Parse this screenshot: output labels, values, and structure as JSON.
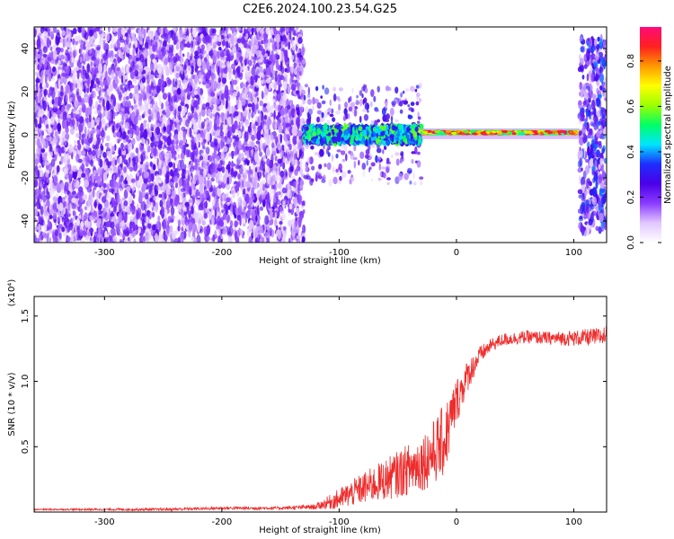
{
  "title": "C2E6.2024.100.23.54.G25",
  "chart_data": [
    {
      "type": "heatmap",
      "xlabel": "Height of straight line (km)",
      "ylabel": "Frequency (Hz)",
      "xlim": [
        -360,
        128
      ],
      "ylim": [
        -50,
        50
      ],
      "xticks": [
        -300,
        -200,
        -100,
        0,
        100
      ],
      "yticks": [
        -40,
        -20,
        0,
        20,
        40
      ],
      "colorbar": {
        "label": "Normalized spectral amplitude",
        "range": [
          0.0,
          0.95
        ],
        "ticks": [
          0.0,
          0.2,
          0.4,
          0.6,
          0.8
        ],
        "colormap": [
          "#ffffff",
          "#e2c6ff",
          "#8a3cff",
          "#4a00e8",
          "#1e2dff",
          "#00e5ff",
          "#00ff66",
          "#9cff00",
          "#ffff00",
          "#ff9900",
          "#ff2020",
          "#ff0a7a"
        ]
      },
      "regions": [
        {
          "x": [
            -360,
            -130
          ],
          "freq_spread_hz": [
            -50,
            50
          ],
          "amplitude": 0.2,
          "pattern": "noise"
        },
        {
          "x": [
            -130,
            -30
          ],
          "freq_spread_hz": [
            -10,
            10
          ],
          "amplitude": 0.45,
          "pattern": "wide signal band with noise"
        },
        {
          "x": [
            -30,
            105
          ],
          "freq_spread_hz": [
            -2,
            3
          ],
          "amplitude": 0.85,
          "center_freq_hz": 1,
          "pattern": "narrow line"
        },
        {
          "x": [
            105,
            128
          ],
          "freq_spread_hz": [
            -45,
            45
          ],
          "amplitude": 0.3,
          "pattern": "noise"
        }
      ]
    },
    {
      "type": "line",
      "xlabel": "Height of straight line (km)",
      "ylabel": "SNR (10 * v/v)",
      "y_multiplier": "(x10⁴)",
      "xlim": [
        -360,
        128
      ],
      "ylim": [
        0,
        1.65
      ],
      "xticks": [
        -300,
        -200,
        -100,
        0,
        100
      ],
      "yticks": [
        0.5,
        1.0,
        1.5
      ],
      "ytick_labels": [
        "0.5",
        "1.0",
        "1.5"
      ],
      "color": "#ee2c2c",
      "series": [
        {
          "x": [
            -360,
            -300,
            -250,
            -200,
            -150,
            -120,
            -100,
            -80,
            -60,
            -40,
            -30,
            -20,
            -10,
            0,
            10,
            20,
            30,
            40,
            60,
            80,
            100,
            120,
            128
          ],
          "y": [
            0.02,
            0.02,
            0.02,
            0.03,
            0.03,
            0.04,
            0.1,
            0.18,
            0.25,
            0.33,
            0.38,
            0.45,
            0.55,
            0.85,
            1.05,
            1.2,
            1.28,
            1.32,
            1.34,
            1.33,
            1.33,
            1.34,
            1.35
          ],
          "noise_amplitude": [
            0.005,
            0.008,
            0.01,
            0.012,
            0.012,
            0.02,
            0.08,
            0.12,
            0.16,
            0.2,
            0.22,
            0.25,
            0.28,
            0.18,
            0.12,
            0.07,
            0.05,
            0.05,
            0.05,
            0.05,
            0.06,
            0.07,
            0.08
          ]
        }
      ]
    }
  ]
}
